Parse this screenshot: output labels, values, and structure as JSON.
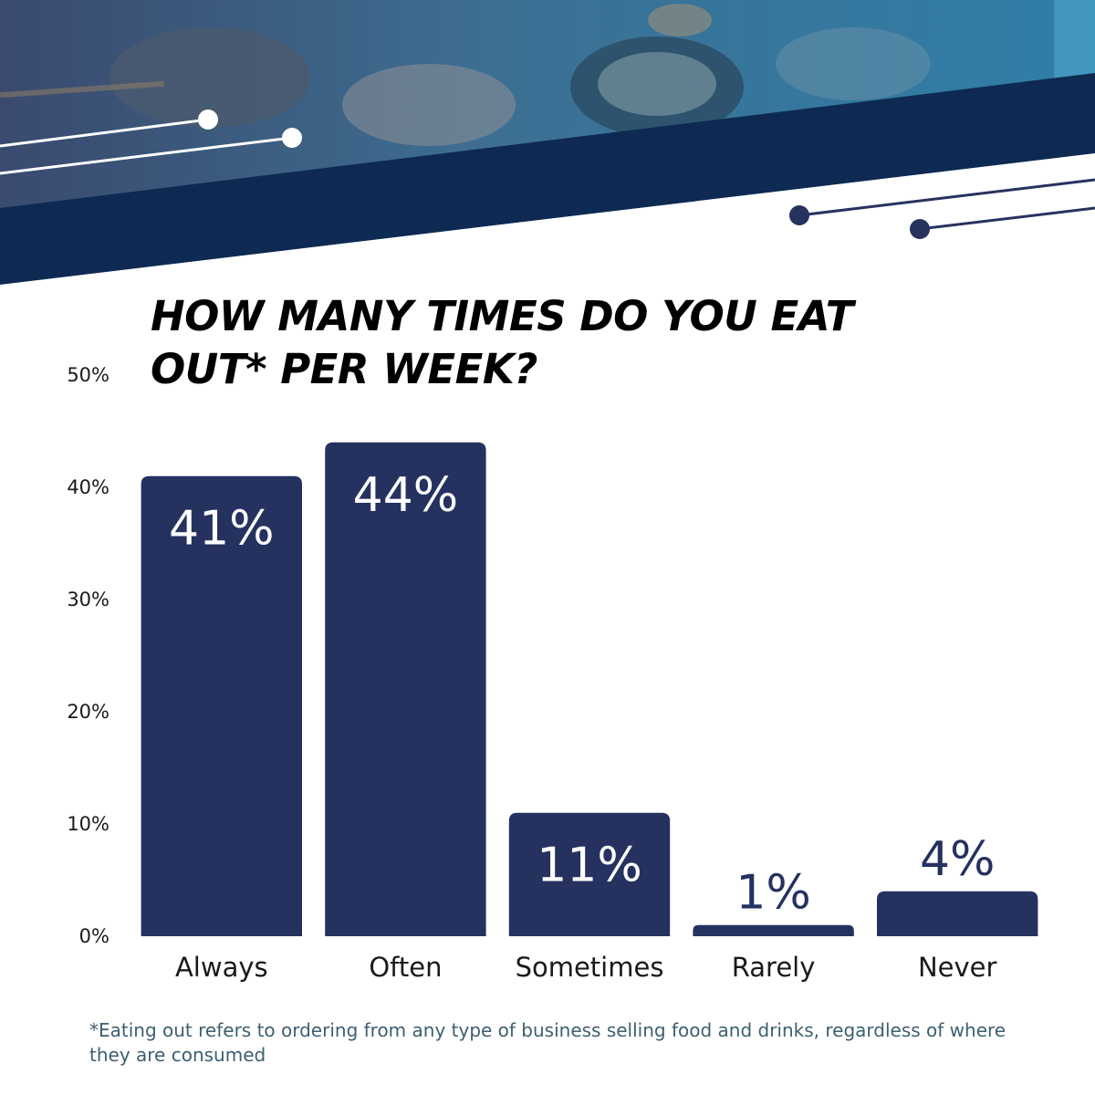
{
  "header": {
    "photo_description_icon": "food-photo-banner",
    "colors": {
      "navy": "#0e2a52",
      "photo_tint": "#2f6a8e",
      "accent_line": "#27335f"
    }
  },
  "chart_data": {
    "type": "bar",
    "title": "HOW MANY TIMES DO YOU EAT OUT* PER WEEK?",
    "categories": [
      "Always",
      "Often",
      "Sometimes",
      "Rarely",
      "Never"
    ],
    "values": [
      41,
      44,
      11,
      1,
      4
    ],
    "data_labels": [
      "41%",
      "44%",
      "11%",
      "1%",
      "4%"
    ],
    "yticks": [
      "0%",
      "10%",
      "20%",
      "30%",
      "40%",
      "50%"
    ],
    "ytick_values": [
      0,
      10,
      20,
      30,
      40,
      50
    ],
    "ylim": [
      0,
      50
    ],
    "xlabel": "",
    "ylabel": "",
    "grid": false,
    "bar_color": "#253260",
    "label_color_inside": "#ffffff",
    "label_color_outside": "#253260"
  },
  "footnote": "*Eating out refers to ordering from any type of business selling food and drinks, regardless of where they are consumed"
}
